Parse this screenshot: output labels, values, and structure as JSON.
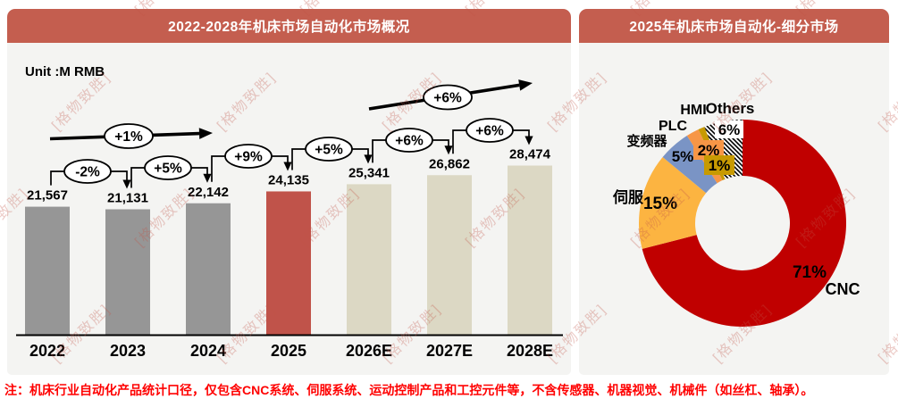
{
  "page": {
    "note": "注：机床行业自动化产品统计口径，仅包含CNC系统、伺服系统、运动控制产品和工控元件等，不含传感器、机器视觉、机械件（如丝杠、轴承）。"
  },
  "watermark": {
    "text": "格物致胜",
    "color": "#C25548"
  },
  "theme": {
    "header_color": "#C45E4F",
    "panel_bg": "#F4F4F2",
    "note_color": "#FF0000"
  },
  "chart_data": [
    {
      "type": "bar",
      "title": "2022-2028年机床市场自动化市场概况",
      "unit_display": "Unit :M RMB",
      "ylabel": "",
      "xlabel": "",
      "ylim": [
        0,
        30000
      ],
      "grid": false,
      "categories": [
        "2022",
        "2023",
        "2024",
        "2025",
        "2026E",
        "2027E",
        "2028E"
      ],
      "values": [
        21567,
        21131,
        22142,
        24135,
        25341,
        26862,
        28474
      ],
      "value_labels": [
        "21,567",
        "21,131",
        "22,142",
        "24,135",
        "25,341",
        "26,862",
        "28,474"
      ],
      "bar_styles": [
        "hist",
        "hist",
        "hist",
        "current",
        "forecast",
        "forecast",
        "forecast"
      ],
      "colors": {
        "hist": "#969696",
        "current": "#C0534A",
        "forecast": "#DCD8C4"
      },
      "growth_labels": [
        "-2%",
        "+5%",
        "+9%",
        "+5%",
        "+6%",
        "+6%"
      ],
      "trend_arrows": [
        {
          "label": "+1%",
          "span": "2022-2024"
        },
        {
          "label": "+6%",
          "span": "2025-2028E"
        }
      ]
    },
    {
      "type": "pie",
      "donut": true,
      "title": "2025年机床市场自动化-细分市场",
      "labels": [
        "CNC",
        "伺服",
        "变频器",
        "PLC",
        "HMI",
        "Others"
      ],
      "values": [
        71,
        15,
        5,
        2,
        1,
        6
      ],
      "value_labels": [
        "71%",
        "15%",
        "5%",
        "2%",
        "1%",
        "6%"
      ],
      "colors": [
        "#C00000",
        "#FCB441",
        "#7A94C5",
        "#F79646",
        "#C79A02",
        "hatch"
      ],
      "legend_position": "around-slices"
    }
  ]
}
